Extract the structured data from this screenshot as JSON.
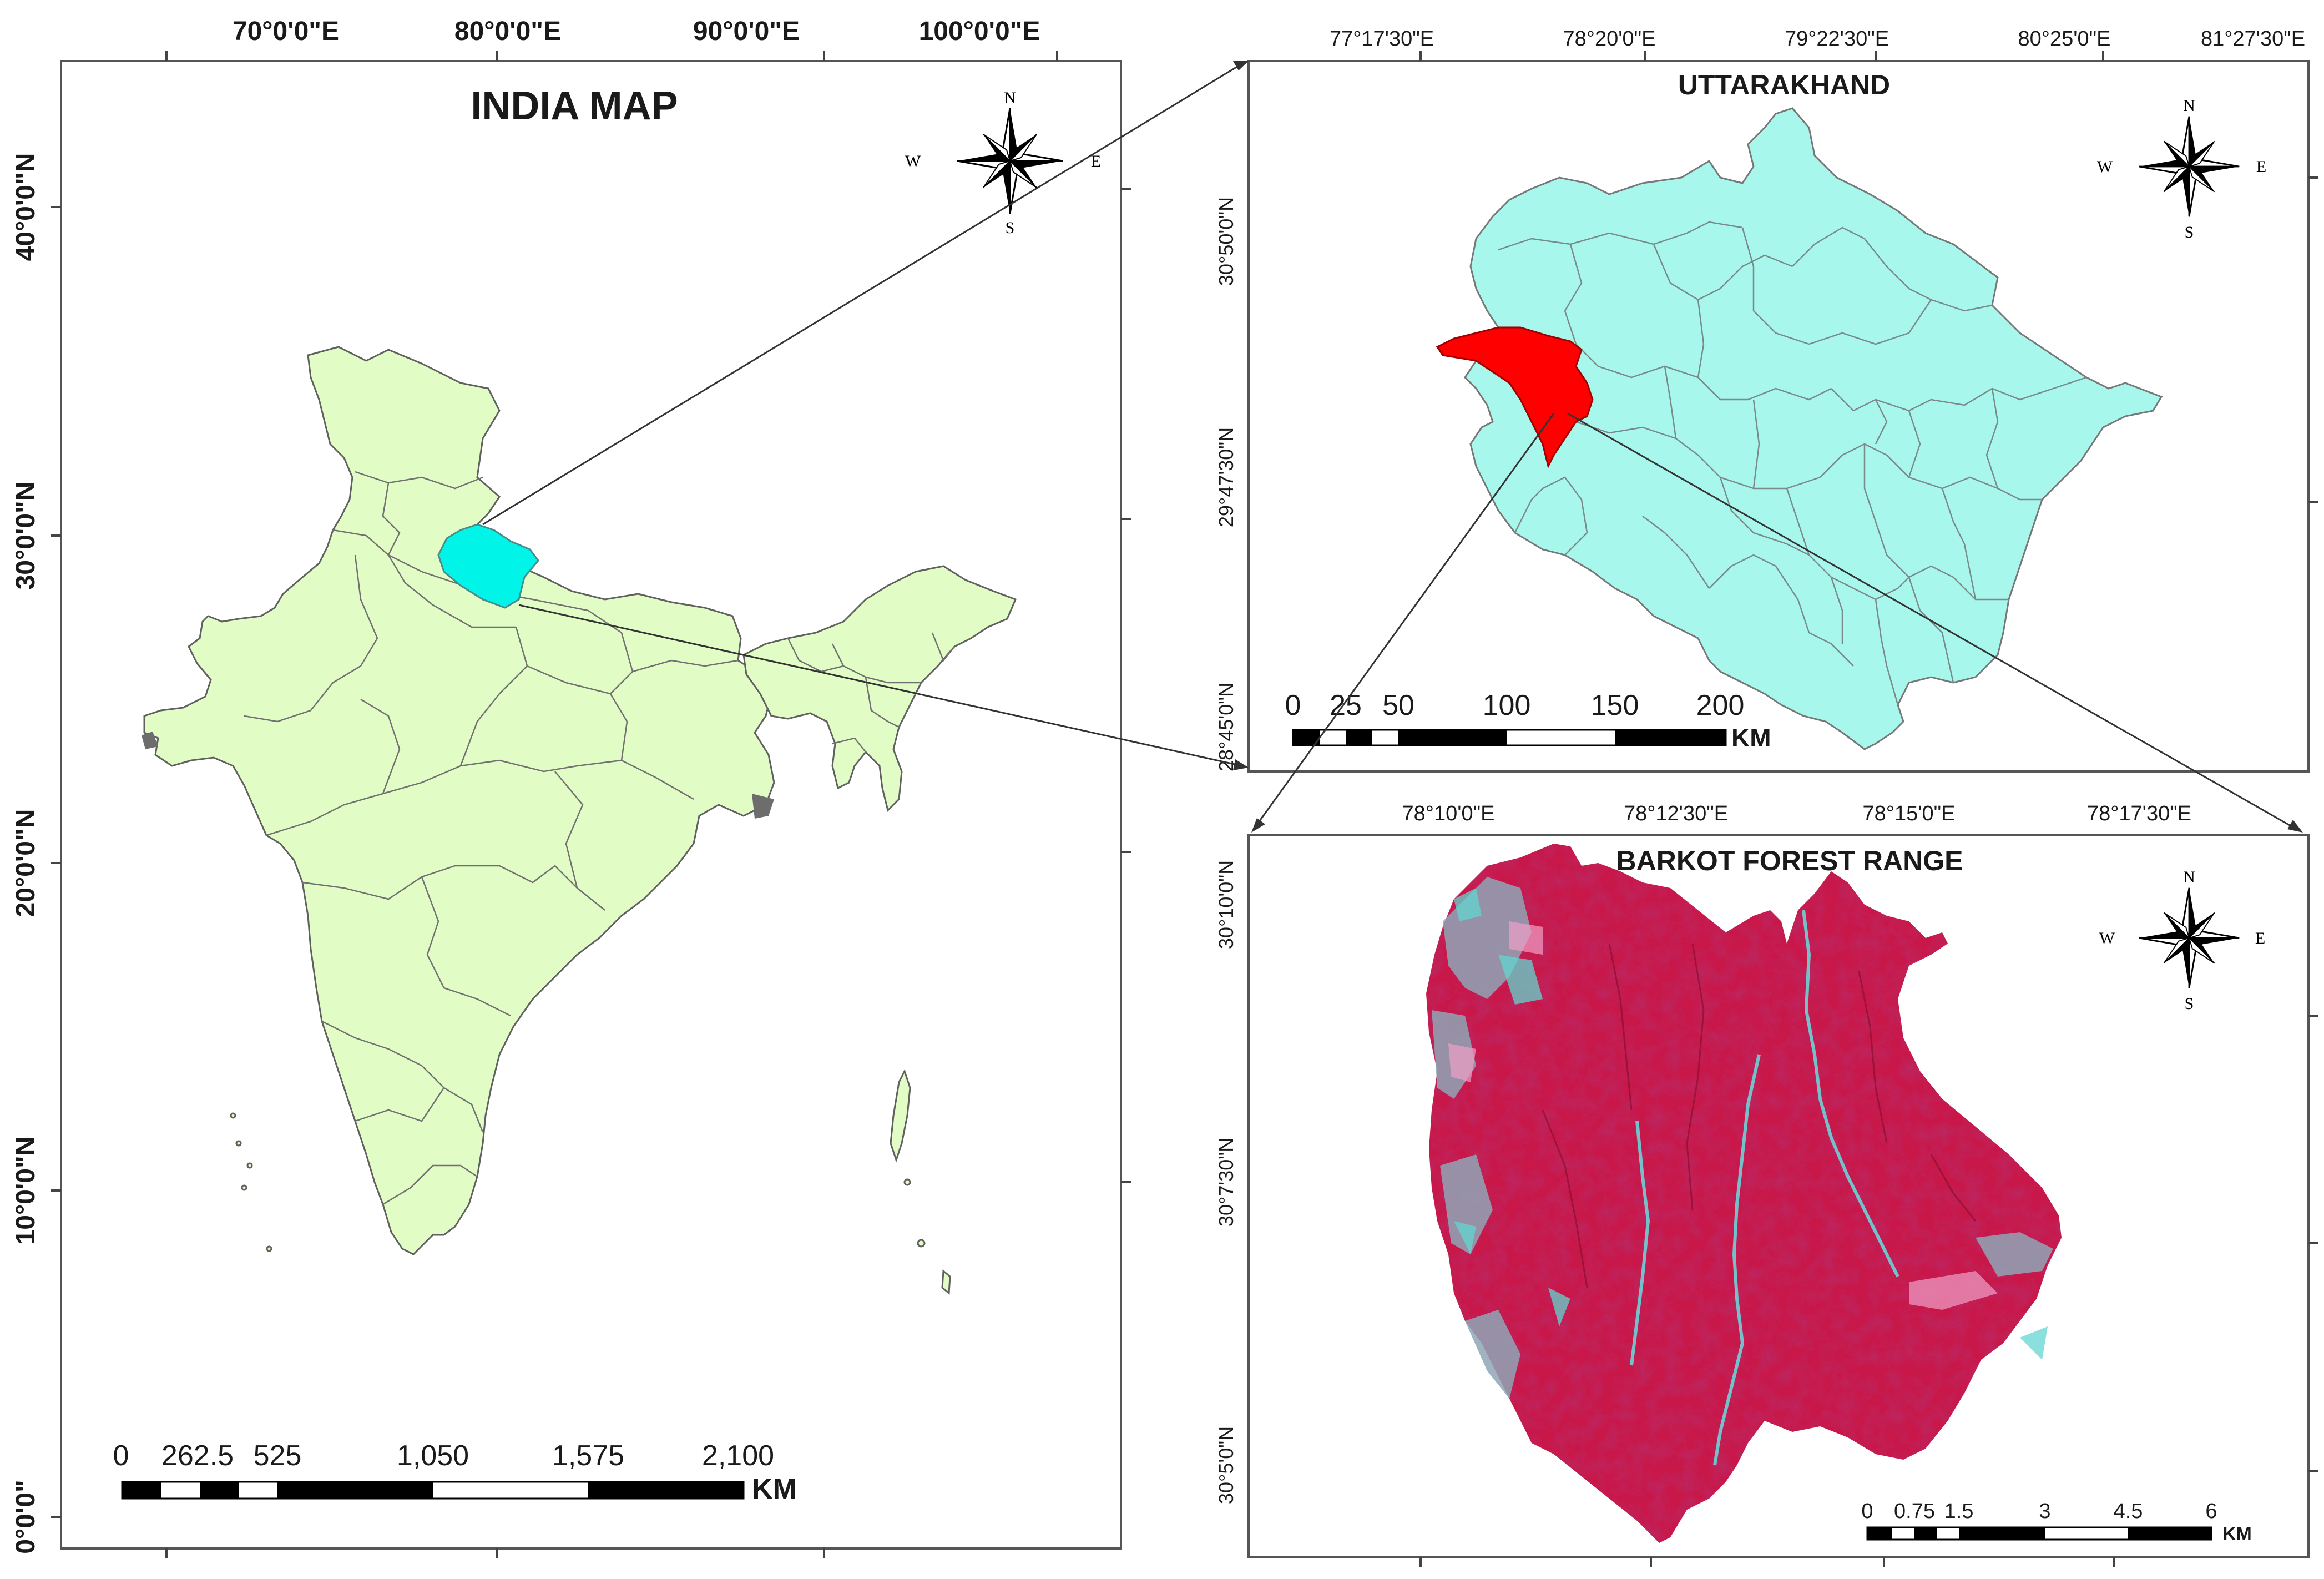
{
  "colors": {
    "india_fill": "#e2fcc6",
    "uttarakhand_fill": "#a8f7ed",
    "uttarakhand_highlight": "#00f4e7",
    "district_highlight": "#ff0000",
    "forest_red": "#c8184a",
    "border": "#606060"
  },
  "india": {
    "title": "INDIA MAP",
    "top_labels": [
      "70°0'0\"E",
      "80°0'0\"E",
      "90°0'0\"E",
      "100°0'0\"E"
    ],
    "left_labels": [
      "40°0'0\"N",
      "30°0'0\"N",
      "20°0'0\"N",
      "10°0'0\"N",
      "0°0'0\""
    ],
    "scale_labels": [
      "0",
      "262.5",
      "525",
      "1,050",
      "1,575",
      "2,100"
    ],
    "scale_unit": "KM"
  },
  "uttarakhand": {
    "title": "UTTARAKHAND",
    "top_labels": [
      "77°17'30\"E",
      "78°20'0\"E",
      "79°22'30\"E",
      "80°25'0\"E",
      "81°27'30\"E"
    ],
    "left_labels": [
      "30°50'0\"N",
      "29°47'30\"N",
      "28°45'0\"N"
    ],
    "scale_labels": [
      "0",
      "25",
      "50",
      "100",
      "150",
      "200"
    ],
    "scale_unit": "KM"
  },
  "barkot": {
    "title": "BARKOT FOREST RANGE",
    "top_labels": [
      "78°10'0\"E",
      "78°12'30\"E",
      "78°15'0\"E",
      "78°17'30\"E"
    ],
    "left_labels": [
      "30°10'0\"N",
      "30°7'30\"N",
      "30°5'0\"N"
    ],
    "scale_labels": [
      "0",
      "0.75",
      "1.5",
      "3",
      "4.5",
      "6"
    ],
    "scale_unit": "KM"
  },
  "compass": {
    "n": "N",
    "s": "S",
    "e": "E",
    "w": "W"
  }
}
